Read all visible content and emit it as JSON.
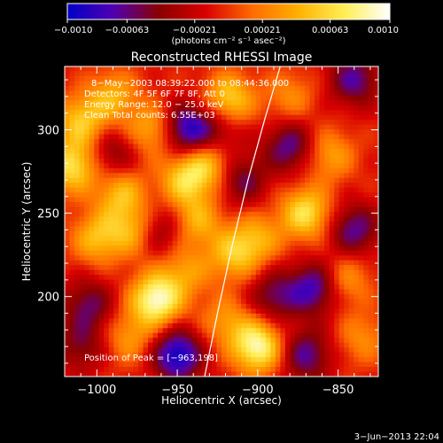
{
  "chart_data": {
    "type": "heatmap",
    "title": "Reconstructed RHESSI Image",
    "xlabel": "Heliocentric X (arcsec)",
    "ylabel": "Heliocentric Y (arcsec)",
    "xlim": [
      -1020,
      -825
    ],
    "ylim": [
      152,
      338
    ],
    "xticks": [
      -1000,
      -950,
      -900,
      -850
    ],
    "xtick_labels": [
      "−1000",
      "−950",
      "−900",
      "−850"
    ],
    "yticks": [
      200,
      250,
      300
    ],
    "ytick_labels": [
      "200",
      "250",
      "300"
    ],
    "colorbar": {
      "min": -0.001,
      "max": 0.001,
      "ticks": [
        -0.001,
        -0.00063,
        -0.00021,
        0.00021,
        0.00063,
        0.001
      ],
      "tick_labels": [
        "−0.0010",
        "−0.00063",
        "−0.00021",
        "0.00021",
        "0.00063",
        "0.0010"
      ],
      "units_label": "(photons cm⁻² s⁻¹ asec⁻²)",
      "colormap": [
        "#0000c8",
        "#5000b0",
        "#8a0000",
        "#d80000",
        "#ff6a00",
        "#ffb000",
        "#ffee55",
        "#ffffff"
      ]
    },
    "annotations": [
      "8−May−2003 08:39:22.000 to 08:44:36.000",
      "Detectors: 4F 5F 6F 7F 8F, Att 0",
      "Energy Range: 12.0 − 25.0 keV",
      "Clean    Total counts: 6.55E+03"
    ],
    "peak_label": "Position of Peak = [−963,198]",
    "peak": [
      -963,
      198
    ],
    "limb_curve": [
      [
        -933,
        152
      ],
      [
        -925,
        190
      ],
      [
        -916,
        230
      ],
      [
        -906,
        270
      ],
      [
        -896,
        305
      ],
      [
        -886,
        338
      ]
    ],
    "sources": [
      {
        "x": -963,
        "y": 198,
        "v": 1.0
      },
      {
        "x": -985,
        "y": 262,
        "v": 0.55
      },
      {
        "x": -1015,
        "y": 278,
        "v": 0.75
      },
      {
        "x": -1000,
        "y": 235,
        "v": 0.55
      },
      {
        "x": -978,
        "y": 240,
        "v": 0.5
      },
      {
        "x": -1010,
        "y": 305,
        "v": 0.6
      },
      {
        "x": -965,
        "y": 300,
        "v": 0.55
      },
      {
        "x": -990,
        "y": 320,
        "v": 0.5
      },
      {
        "x": -945,
        "y": 270,
        "v": 0.65
      },
      {
        "x": -930,
        "y": 280,
        "v": 0.55
      },
      {
        "x": -938,
        "y": 245,
        "v": 0.5
      },
      {
        "x": -915,
        "y": 225,
        "v": 0.55
      },
      {
        "x": -900,
        "y": 235,
        "v": 0.45
      },
      {
        "x": -918,
        "y": 318,
        "v": 0.7
      },
      {
        "x": -870,
        "y": 250,
        "v": 0.75
      },
      {
        "x": -900,
        "y": 170,
        "v": 0.95
      },
      {
        "x": -855,
        "y": 285,
        "v": 0.45
      },
      {
        "x": -845,
        "y": 210,
        "v": 0.4
      },
      {
        "x": -945,
        "y": 215,
        "v": 0.4
      },
      {
        "x": -980,
        "y": 175,
        "v": 0.4
      },
      {
        "x": -920,
        "y": 185,
        "v": 0.4
      },
      {
        "x": -835,
        "y": 175,
        "v": 0.35
      },
      {
        "x": -880,
        "y": 320,
        "v": 0.35
      },
      {
        "x": -950,
        "y": 165,
        "v": -0.9
      },
      {
        "x": -945,
        "y": 300,
        "v": -0.8
      },
      {
        "x": -1005,
        "y": 195,
        "v": -0.5
      },
      {
        "x": -910,
        "y": 270,
        "v": -0.5
      },
      {
        "x": -865,
        "y": 205,
        "v": -0.7
      },
      {
        "x": -880,
        "y": 290,
        "v": -0.6
      },
      {
        "x": -840,
        "y": 240,
        "v": -0.6
      },
      {
        "x": -870,
        "y": 165,
        "v": -0.6
      },
      {
        "x": -990,
        "y": 285,
        "v": -0.4
      },
      {
        "x": -960,
        "y": 240,
        "v": -0.4
      },
      {
        "x": -890,
        "y": 200,
        "v": -0.5
      },
      {
        "x": -1010,
        "y": 170,
        "v": -0.4
      },
      {
        "x": -840,
        "y": 330,
        "v": -0.6
      },
      {
        "x": -925,
        "y": 300,
        "v": -0.4
      }
    ]
  },
  "footer": {
    "date_stamp": "3−Jun−2013 22:04"
  }
}
